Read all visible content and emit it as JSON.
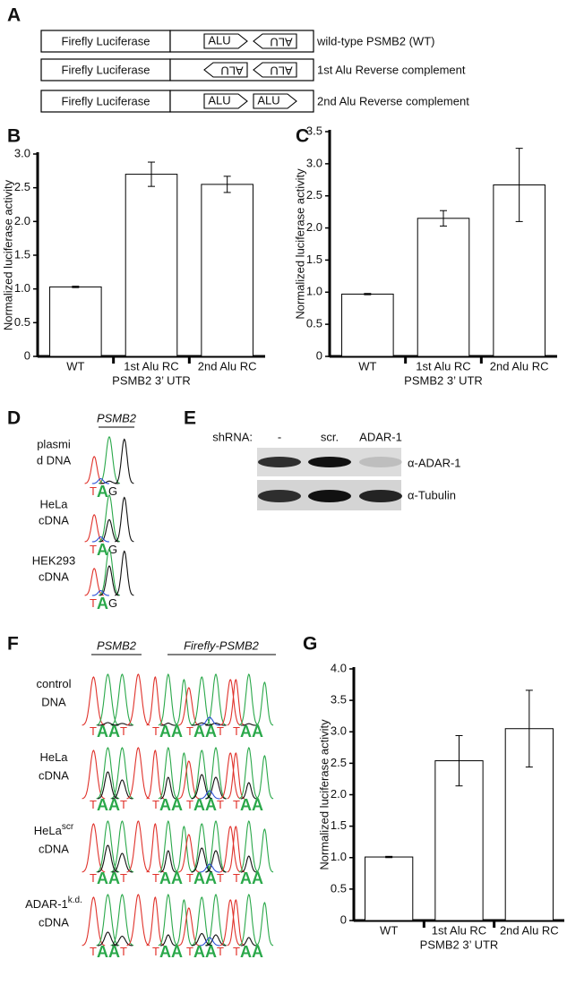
{
  "panel_labels": [
    "A",
    "B",
    "C",
    "D",
    "E",
    "F",
    "G"
  ],
  "constructs": {
    "reporter": "Firefly Luciferase",
    "element": "ALU",
    "rows": [
      "wild-type PSMB2 (WT)",
      "1st Alu Reverse complement",
      "2nd Alu Reverse complement"
    ]
  },
  "chart_data": [
    {
      "type": "bar",
      "categories": [
        "WT",
        "1st Alu RC",
        "2nd Alu RC"
      ],
      "values": [
        1.03,
        2.7,
        2.55
      ],
      "errors": [
        0.01,
        0.18,
        0.12
      ],
      "ylabel": "Normalized luciferase activity",
      "xlabel": "PSMB2 3’ UTR",
      "color": "#ffffff",
      "edgecolor": "#000000",
      "ylim": [
        0,
        3
      ],
      "yticks": [
        0,
        0.5,
        {
          "value": 1,
          "label": "1.0"
        },
        1.5,
        {
          "value": 2,
          "label": "2.0"
        },
        2.5,
        {
          "value": 3,
          "label": "3.0"
        }
      ]
    },
    {
      "type": "bar",
      "categories": [
        "WT",
        "1st Alu RC",
        "2nd Alu RC"
      ],
      "values": [
        0.97,
        2.15,
        2.67
      ],
      "errors": [
        0.01,
        0.12,
        0.57
      ],
      "ylabel": "Normalized luciferase activity",
      "xlabel": "PSMB2 3’ UTR",
      "color": "#ffffff",
      "edgecolor": "#000000",
      "ylim": [
        0,
        3.5
      ],
      "yticks": [
        0,
        0.5,
        {
          "value": 1,
          "label": "1.0"
        },
        1.5,
        {
          "value": 2,
          "label": "2.0"
        },
        2.5,
        {
          "value": 3,
          "label": "3.0"
        },
        3.5
      ]
    },
    {
      "type": "bar",
      "categories": [
        "WT",
        "1st Alu RC",
        "2nd Alu RC"
      ],
      "values": [
        1.01,
        2.54,
        3.05
      ],
      "errors": [
        0.01,
        0.4,
        0.61
      ],
      "ylabel": "Normalized luciferase activity",
      "xlabel": "PSMB2 3’ UTR",
      "color": "#ffffff",
      "edgecolor": "#000000",
      "ylim": [
        0,
        4
      ],
      "yticks": [
        0,
        0.5,
        {
          "value": 1,
          "label": "1.0"
        },
        1.5,
        {
          "value": 2,
          "label": "2.0"
        },
        2.5,
        {
          "value": 3,
          "label": "3.0"
        },
        3.5,
        {
          "value": 4,
          "label": "4.0"
        }
      ]
    }
  ],
  "sequencing_d": {
    "title": "PSMB2",
    "samples": [
      [
        "plasmi",
        "d DNA"
      ],
      [
        "HeLa",
        "cDNA"
      ],
      [
        "HEK293",
        "cDNA"
      ]
    ],
    "bases": [
      "T",
      "A",
      "G"
    ]
  },
  "western": {
    "row_label": "shRNA:",
    "lanes": [
      "-",
      "scr.",
      "ADAR-1"
    ],
    "probes": [
      "α-ADAR-1",
      "α-Tubulin"
    ]
  },
  "sequencing_f": {
    "columns": [
      "PSMB2",
      "Firefly-PSMB2"
    ],
    "samples": [
      {
        "lines": [
          "control",
          "DNA"
        ]
      },
      {
        "lines": [
          "HeLa",
          "cDNA"
        ]
      },
      {
        "lines": [
          "HeLa",
          "cDNA"
        ],
        "sup": "scr"
      },
      {
        "lines": [
          "ADAR-1",
          "cDNA"
        ],
        "sup": "k.d."
      }
    ],
    "bases_long": [
      "T",
      "A",
      "A",
      "T"
    ],
    "bases_short": [
      "T",
      "A",
      "A"
    ]
  }
}
